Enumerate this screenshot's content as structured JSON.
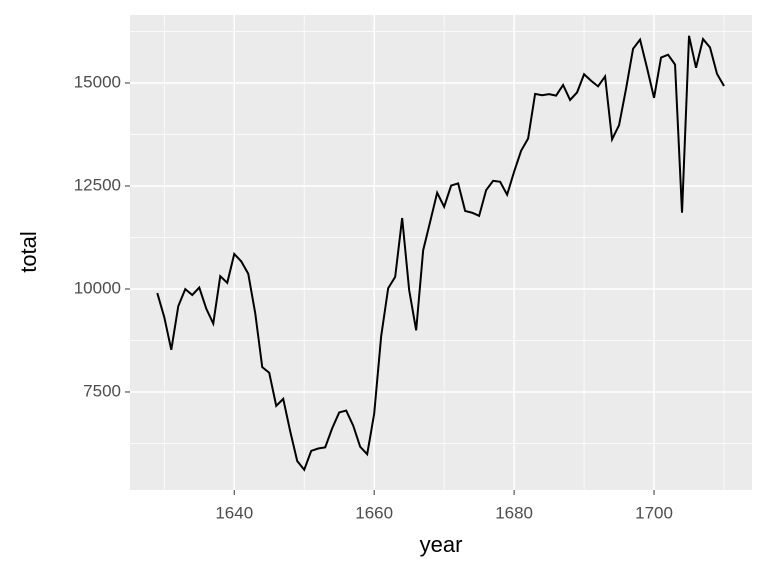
{
  "chart_data": {
    "type": "line",
    "color": "#000000",
    "x_label": "year",
    "y_label": "total",
    "x": [
      1629,
      1630,
      1631,
      1632,
      1633,
      1634,
      1635,
      1636,
      1637,
      1638,
      1639,
      1640,
      1641,
      1642,
      1643,
      1644,
      1645,
      1646,
      1647,
      1648,
      1649,
      1650,
      1651,
      1652,
      1653,
      1654,
      1655,
      1656,
      1657,
      1658,
      1659,
      1660,
      1661,
      1662,
      1663,
      1664,
      1665,
      1666,
      1667,
      1668,
      1669,
      1670,
      1671,
      1672,
      1673,
      1674,
      1675,
      1676,
      1677,
      1678,
      1679,
      1680,
      1681,
      1682,
      1683,
      1684,
      1685,
      1686,
      1687,
      1688,
      1689,
      1690,
      1691,
      1692,
      1693,
      1694,
      1695,
      1696,
      1697,
      1698,
      1699,
      1700,
      1701,
      1702,
      1703,
      1704,
      1705,
      1706,
      1707,
      1708,
      1709,
      1710
    ],
    "values": [
      9901,
      9315,
      8524,
      9584,
      9997,
      9855,
      10034,
      9522,
      9160,
      10311,
      10150,
      10850,
      10670,
      10370,
      9410,
      8104,
      7966,
      7163,
      7332,
      6544,
      5825,
      5612,
      6071,
      6128,
      6155,
      6620,
      7004,
      7050,
      6685,
      6170,
      5990,
      6971,
      8855,
      10019,
      10292,
      11722,
      9972,
      8997,
      10938,
      11633,
      12335,
      11997,
      12510,
      12563,
      11895,
      11851,
      11775,
      12399,
      12626,
      12601,
      12288,
      12847,
      13355,
      13653,
      14735,
      14702,
      14730,
      14694,
      14951,
      14588,
      14771,
      15211,
      15054,
      14918,
      15159,
      13632,
      13976,
      14861,
      15829,
      16052,
      15363,
      14639,
      15616,
      15687,
      15448,
      11851,
      16145,
      15369,
      16066,
      15862,
      15220,
      14928
    ],
    "xlim": [
      1625.1,
      1714
    ],
    "ylim": [
      5121,
      16650
    ],
    "xticks": [
      1640,
      1660,
      1680,
      1700
    ],
    "yticks": [
      7500,
      10000,
      12500,
      15000
    ],
    "grid": true
  }
}
